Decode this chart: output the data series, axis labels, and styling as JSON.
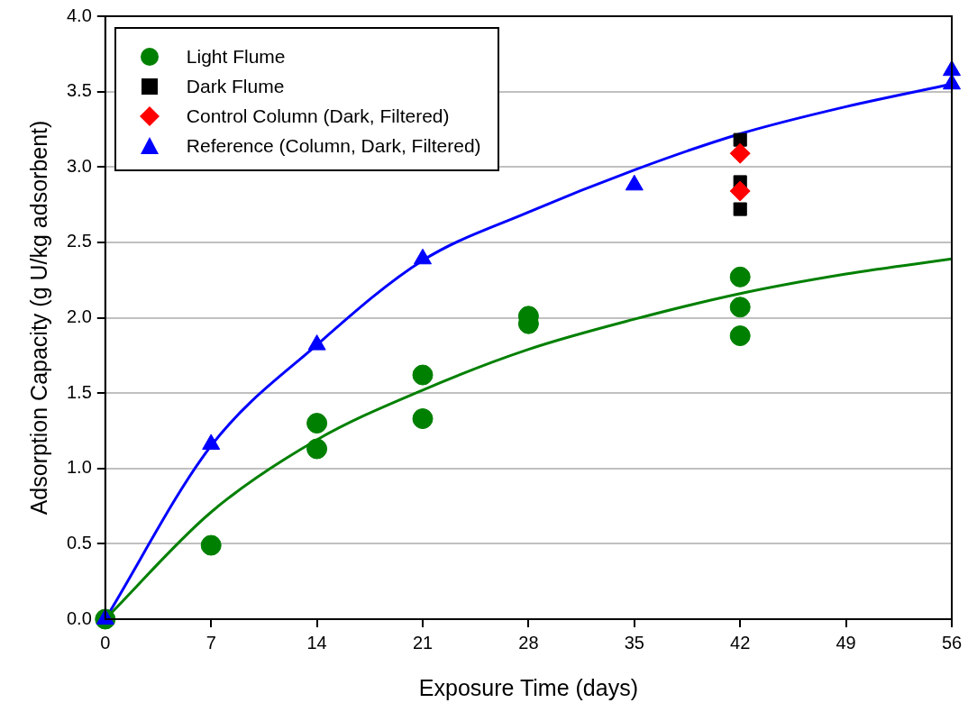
{
  "chart_data": {
    "type": "scatter",
    "xlabel": "Exposure Time (days)",
    "ylabel": "Adsorption Capacity (g U/kg adsorbent)",
    "xlim": [
      0,
      56
    ],
    "xticks": [
      0,
      7,
      14,
      21,
      28,
      35,
      42,
      49,
      56
    ],
    "ylim": [
      0,
      4
    ],
    "yticks": [
      {
        "value": 0,
        "label": "0.0"
      },
      {
        "value": 0.5,
        "label": "0.5"
      },
      {
        "value": 1,
        "label": "1.0"
      },
      {
        "value": 1.5,
        "label": "1.5"
      },
      {
        "value": 2,
        "label": "2.0"
      },
      {
        "value": 2.5,
        "label": "2.5"
      },
      {
        "value": 3,
        "label": "3.0"
      },
      {
        "value": 3.5,
        "label": "3.5"
      },
      {
        "value": 4,
        "label": "4.0"
      }
    ],
    "grid": "y",
    "legend": "top left",
    "series": [
      {
        "type": "line",
        "color": "#008000",
        "marker": "none",
        "x": [
          0,
          7,
          14,
          21,
          28,
          35,
          42,
          49,
          56
        ],
        "values": [
          0,
          0.71,
          1.19,
          1.52,
          1.79,
          1.99,
          2.16,
          2.29,
          2.39
        ]
      },
      {
        "type": "line",
        "color": "#0000ff",
        "marker": "none",
        "x": [
          0,
          7,
          14,
          21,
          28,
          35,
          42,
          49,
          56
        ],
        "values": [
          0,
          1.15,
          1.82,
          2.38,
          2.7,
          2.98,
          3.22,
          3.4,
          3.55
        ]
      },
      {
        "name": "Light Flume",
        "color": "#008000",
        "marker": "circle",
        "x": [
          0,
          7,
          14,
          14,
          21,
          21,
          28,
          28,
          42,
          42,
          42
        ],
        "values": [
          0,
          0.49,
          1.3,
          1.13,
          1.62,
          1.33,
          2.01,
          1.96,
          2.27,
          2.07,
          1.88
        ]
      },
      {
        "name": "Dark Flume",
        "color": "#000000",
        "marker": "square",
        "x": [
          42,
          42,
          42
        ],
        "values": [
          3.18,
          2.9,
          2.72
        ]
      },
      {
        "name": "Control Column (Dark, Filtered)",
        "color": "#ff0000",
        "marker": "diamond",
        "x": [
          42,
          42
        ],
        "values": [
          3.09,
          2.84
        ]
      },
      {
        "name": "Reference (Column, Dark, Filtered)",
        "color": "#0000ff",
        "marker": "triangle",
        "x": [
          0,
          7,
          14,
          21,
          35,
          56,
          56
        ],
        "values": [
          0,
          1.16,
          1.82,
          2.39,
          2.88,
          3.64,
          3.55
        ]
      }
    ]
  }
}
